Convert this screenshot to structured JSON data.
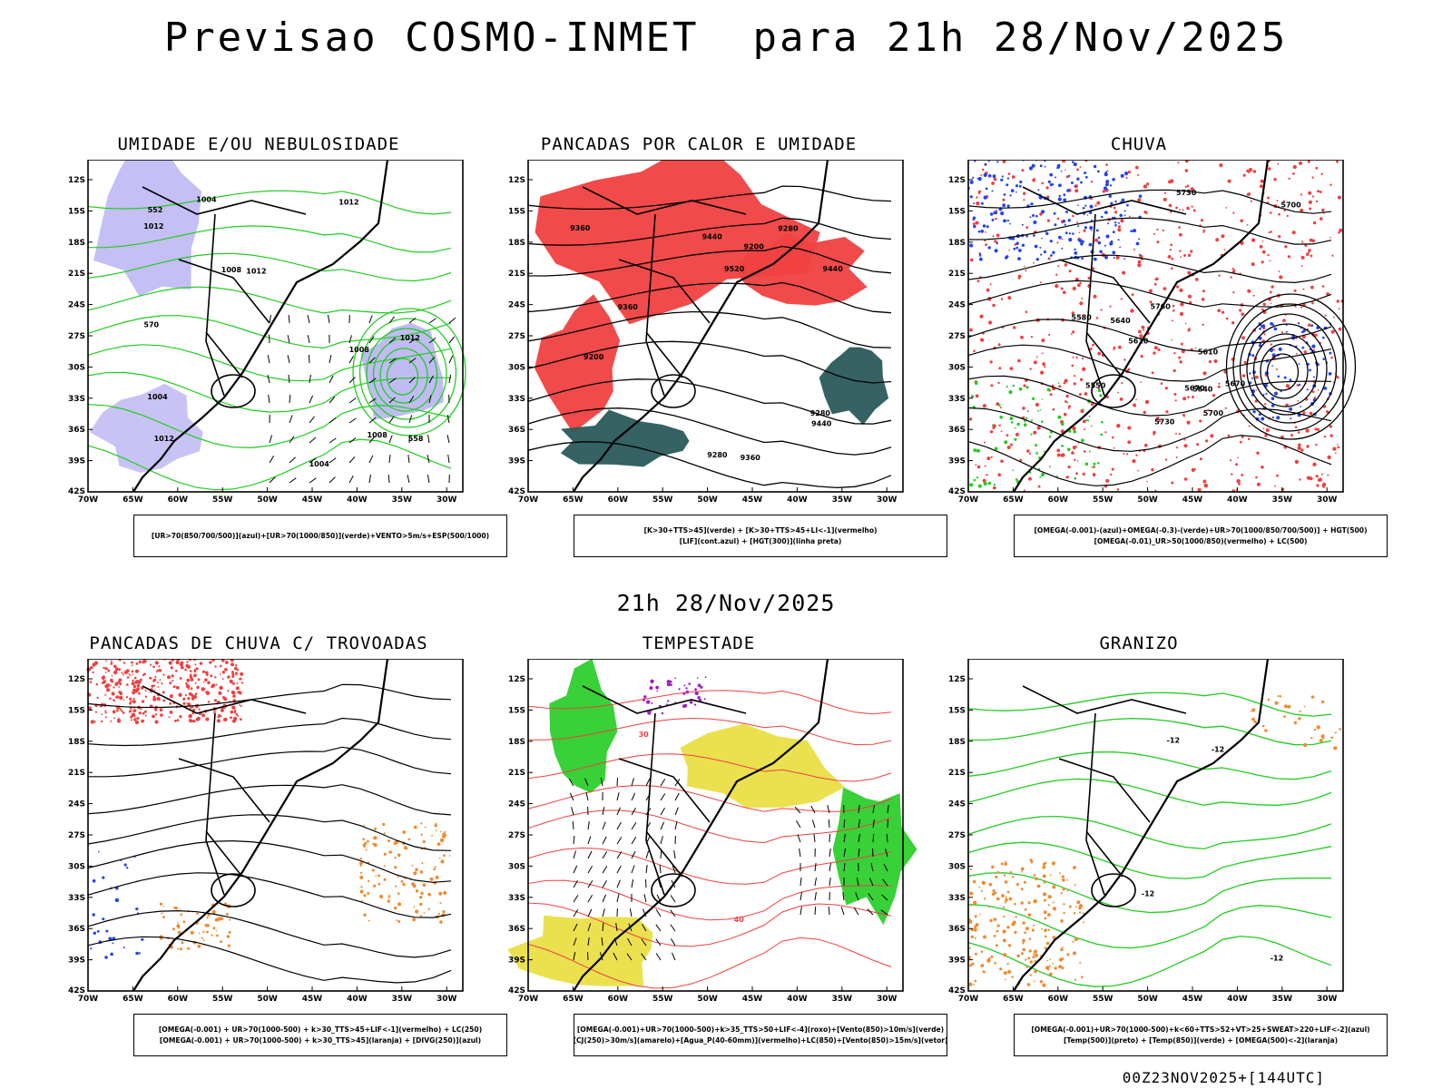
{
  "header": {
    "title": "Previsao COSMO-INMET  para 21h 28/Nov/2025",
    "mid_title": "21h 28/Nov/2025",
    "footer": "00Z23NOV2025+[144UTC]"
  },
  "axes": {
    "lat_labels": [
      "12S",
      "15S",
      "18S",
      "21S",
      "24S",
      "27S",
      "30S",
      "33S",
      "36S",
      "39S",
      "42S"
    ],
    "lon_labels": [
      "70W",
      "65W",
      "60W",
      "55W",
      "50W",
      "45W",
      "40W",
      "35W",
      "30W"
    ]
  },
  "colors": {
    "red": "#f04040",
    "green": "#22cc22",
    "blue": "#2244ee",
    "lavender": "#b0aaf0",
    "teal": "#2a5a5a",
    "yellow": "#e8dc30",
    "orange": "#f08a30",
    "purple": "#a020c0"
  },
  "panels": [
    {
      "title": "UMIDADE E/OU NEBULOSIDADE",
      "legend": [
        "[UR>70(850/700/500)](azul)+[UR>70(1000/850)](verde)+VENTO>5m/s+ESP(500/1000)"
      ],
      "labels": [
        "1008",
        "1012",
        "1012",
        "1004",
        "1012",
        "1008",
        "1004",
        "1012",
        "1008",
        "1004",
        "1012",
        "570",
        "552",
        "558"
      ]
    },
    {
      "title": "PANCADAS POR CALOR E UMIDADE",
      "legend": [
        "[K>30+TTS>45](verde) + [K>30+TTS>45+LI<-1](vermelho)",
        "[LIF](cont.azul) + [HGT(300)](linha preta)"
      ],
      "labels": [
        "9520",
        "9440",
        "9360",
        "9440",
        "9280",
        "9440",
        "9360",
        "9280",
        "9360",
        "9200",
        "9280",
        "9200"
      ]
    },
    {
      "title": "CHUVA",
      "legend": [
        "[OMEGA(-0.001)-(azul)+OMEGA(-0.3)-(verde)+UR>70(1000/850/700/500)] + HGT(500)",
        "[OMEGA(-0.01)_UR>50(1000/850)(vermelho) + LC(500)"
      ],
      "labels": [
        "5730",
        "5760",
        "5700",
        "5670",
        "5640",
        "5610",
        "5730",
        "5700",
        "5670",
        "5640",
        "5610",
        "5580",
        "5550"
      ]
    },
    {
      "title": "PANCADAS DE CHUVA C/ TROVOADAS",
      "legend": [
        "[OMEGA(-0.001) + UR>70(1000-500) + k>30_TTS>45+LIF<-1](vermelho) + LC(250)",
        "[OMEGA(-0.001) + UR>70(1000-500) + k>30_TTS>45](laranja) + [DIVG(250)](azul)"
      ],
      "labels": []
    },
    {
      "title": "TEMPESTADE",
      "legend": [
        "[OMEGA(-0.001)+UR>70(1000-500)+k>35_TTS>50+LIF<-4](roxo)+[Vento(850)>10m/s](verde)",
        "[CJ(250)>30m/s](amarelo)+[Agua_P(40-60mm)](vermelho)+LC(850)+[Vento(850)>15m/s](vetor)"
      ],
      "labels": [
        "40",
        "30"
      ]
    },
    {
      "title": "GRANIZO",
      "legend": [
        "[OMEGA(-0.001)+UR>70(1000-500)+k<60+TTS>52+VT>25+SWEAT>220+LIF<-2](azul)",
        "[Temp(500)](preto) + [Temp(850)](verde) + [OMEGA(500)<-2](laranja)"
      ],
      "labels": [
        "-12",
        "-12",
        "-12",
        "-12"
      ]
    }
  ]
}
